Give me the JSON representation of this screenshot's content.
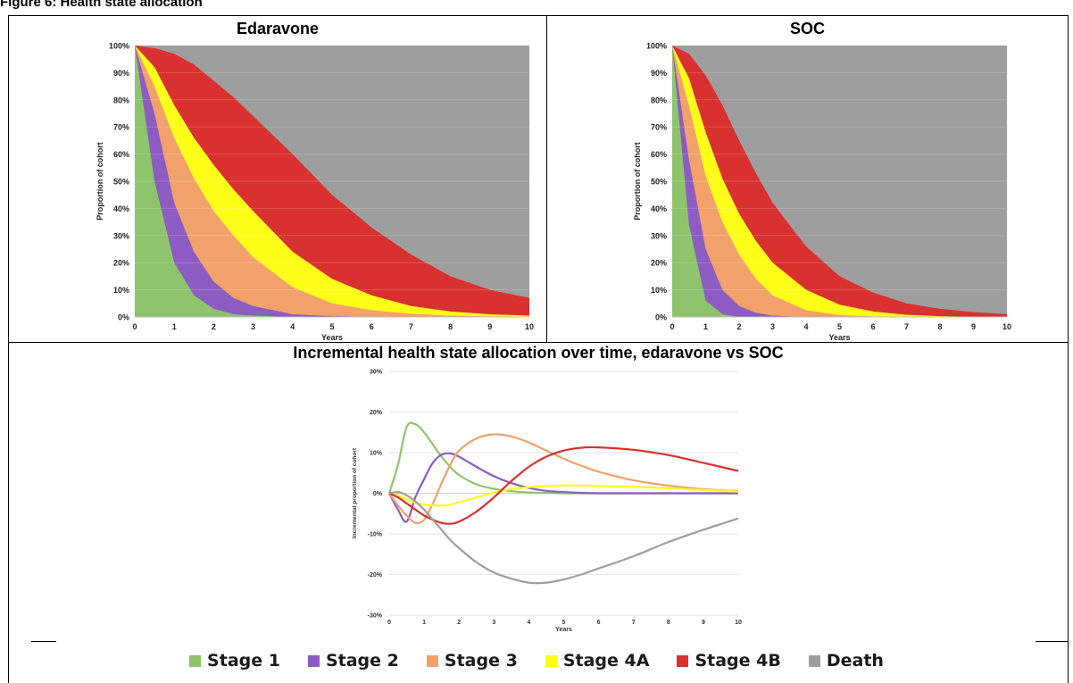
{
  "figure_title": "Figure 6: Health state allocation",
  "colors": {
    "stage1": "#8dc46c",
    "stage2": "#8c5cc2",
    "stage3": "#f2a16a",
    "stage4a": "#ffff1a",
    "stage4b": "#d9312f",
    "death": "#9e9e9e"
  },
  "legend": [
    {
      "label": "Stage 1",
      "color": "#8dc46c"
    },
    {
      "label": "Stage 2",
      "color": "#8c5cc2"
    },
    {
      "label": "Stage 3",
      "color": "#f2a16a"
    },
    {
      "label": "Stage 4A",
      "color": "#ffff1a"
    },
    {
      "label": "Stage 4B",
      "color": "#d9312f"
    },
    {
      "label": "Death",
      "color": "#9e9e9e"
    }
  ],
  "chart_data": [
    {
      "type": "area",
      "title": "Edaravone",
      "xlabel": "Years",
      "ylabel": "Proportion of cohort",
      "xlim": [
        0,
        10
      ],
      "ylim": [
        0,
        100
      ],
      "x_ticks": [
        "0",
        "1",
        "2",
        "3",
        "4",
        "5",
        "6",
        "7",
        "8",
        "9",
        "10"
      ],
      "y_ticks": [
        "0%",
        "10%",
        "20%",
        "30%",
        "40%",
        "50%",
        "60%",
        "70%",
        "80%",
        "90%",
        "100%"
      ],
      "stacked": true,
      "x": [
        0,
        0.5,
        1,
        1.5,
        2,
        2.5,
        3,
        4,
        5,
        6,
        7,
        8,
        9,
        10
      ],
      "cumulative_series": [
        {
          "name": "Stage 1",
          "values": [
            100,
            50,
            20,
            8,
            3,
            1,
            0.5,
            0,
            0,
            0,
            0,
            0,
            0,
            0
          ]
        },
        {
          "name": "Stage 2",
          "values": [
            100,
            75,
            42,
            24,
            13,
            7,
            4,
            1,
            0.3,
            0,
            0,
            0,
            0,
            0
          ]
        },
        {
          "name": "Stage 3",
          "values": [
            100,
            85,
            66,
            51,
            39,
            30,
            22,
            11,
            5,
            2.5,
            1.2,
            0.5,
            0.2,
            0
          ]
        },
        {
          "name": "Stage 4A",
          "values": [
            100,
            92,
            78,
            66,
            56,
            47,
            39,
            24,
            14,
            8,
            4,
            2,
            1,
            0.5
          ]
        },
        {
          "name": "Stage 4B",
          "values": [
            100,
            99,
            97,
            93,
            87,
            81,
            74,
            60,
            45,
            33,
            23,
            15,
            10,
            7
          ]
        },
        {
          "name": "Death",
          "values": [
            100,
            100,
            100,
            100,
            100,
            100,
            100,
            100,
            100,
            100,
            100,
            100,
            100,
            100
          ]
        }
      ],
      "grid": true
    },
    {
      "type": "area",
      "title": "SOC",
      "xlabel": "Years",
      "ylabel": "Proportion of cohort",
      "xlim": [
        0,
        10
      ],
      "ylim": [
        0,
        100
      ],
      "x_ticks": [
        "0",
        "1",
        "2",
        "3",
        "4",
        "5",
        "6",
        "7",
        "8",
        "9",
        "10"
      ],
      "y_ticks": [
        "0%",
        "10%",
        "20%",
        "30%",
        "40%",
        "50%",
        "60%",
        "70%",
        "80%",
        "90%",
        "100%"
      ],
      "stacked": true,
      "x": [
        0,
        0.5,
        1,
        1.5,
        2,
        2.5,
        3,
        4,
        5,
        6,
        7,
        8,
        9,
        10
      ],
      "cumulative_series": [
        {
          "name": "Stage 1",
          "values": [
            100,
            34,
            6,
            1,
            0,
            0,
            0,
            0,
            0,
            0,
            0,
            0,
            0,
            0
          ]
        },
        {
          "name": "Stage 2",
          "values": [
            100,
            58,
            25,
            10,
            4,
            1.5,
            0.5,
            0,
            0,
            0,
            0,
            0,
            0,
            0
          ]
        },
        {
          "name": "Stage 3",
          "values": [
            100,
            78,
            52,
            35,
            23,
            14,
            8,
            2.5,
            0.7,
            0.2,
            0,
            0,
            0,
            0
          ]
        },
        {
          "name": "Stage 4A",
          "values": [
            100,
            88,
            68,
            51,
            38,
            28,
            20,
            10,
            4.5,
            2,
            0.8,
            0.3,
            0.1,
            0
          ]
        },
        {
          "name": "Stage 4B",
          "values": [
            100,
            97,
            89,
            78,
            65,
            53,
            42,
            26,
            15,
            9,
            5,
            3,
            1.8,
            1
          ]
        },
        {
          "name": "Death",
          "values": [
            100,
            100,
            100,
            100,
            100,
            100,
            100,
            100,
            100,
            100,
            100,
            100,
            100,
            100
          ]
        }
      ],
      "grid": true
    },
    {
      "type": "line",
      "title": "Incremental health state allocation over time, edaravone vs SOC",
      "xlabel": "Years",
      "ylabel": "Incremental proportion of cohort",
      "xlim": [
        0,
        10
      ],
      "ylim": [
        -30,
        30
      ],
      "x_ticks": [
        "0",
        "1",
        "2",
        "3",
        "4",
        "5",
        "6",
        "7",
        "8",
        "9",
        "10"
      ],
      "y_ticks": [
        "-30%",
        "-20%",
        "-10%",
        "0%",
        "10%",
        "20%",
        "30%"
      ],
      "x": [
        0,
        0.25,
        0.5,
        0.75,
        1,
        1.25,
        1.5,
        1.75,
        2,
        2.5,
        3,
        3.5,
        4,
        4.5,
        5,
        5.5,
        6,
        7,
        8,
        9,
        10
      ],
      "series": [
        {
          "name": "Stage 1",
          "values": [
            0,
            7,
            16.3,
            17,
            15,
            12,
            9,
            6.5,
            4.5,
            2.2,
            1.1,
            0.5,
            0.2,
            0.1,
            0,
            0,
            0,
            0,
            0,
            0,
            0
          ]
        },
        {
          "name": "Stage 2",
          "values": [
            0,
            -4,
            -7,
            -1,
            3.5,
            7.5,
            9.5,
            9.8,
            9,
            6.5,
            4.2,
            2.5,
            1.3,
            0.6,
            0.3,
            0.1,
            0,
            0,
            0,
            0,
            0
          ]
        },
        {
          "name": "Stage 3",
          "values": [
            0,
            -3,
            -5.5,
            -7.3,
            -6.5,
            -2.5,
            2.5,
            7,
            10.5,
            13.5,
            14.5,
            14,
            12.5,
            10.5,
            8.5,
            6.8,
            5.3,
            3.2,
            1.9,
            1,
            0.5
          ]
        },
        {
          "name": "Stage 4A",
          "values": [
            0,
            -0.5,
            -1.5,
            -2.3,
            -2.8,
            -3,
            -3,
            -2.8,
            -2.2,
            -1,
            0.2,
            1,
            1.5,
            1.8,
            1.9,
            1.9,
            1.8,
            1.6,
            1.2,
            0.8,
            0.4
          ]
        },
        {
          "name": "Stage 4B",
          "values": [
            0,
            -1,
            -2.5,
            -4,
            -5.5,
            -6.5,
            -7.3,
            -7.5,
            -7,
            -4.5,
            -1,
            3,
            6.5,
            9,
            10.5,
            11.2,
            11.3,
            10.7,
            9.4,
            7.5,
            5.5
          ]
        },
        {
          "name": "Death",
          "values": [
            0,
            0.3,
            -0.5,
            -2,
            -4,
            -6.5,
            -9,
            -11.5,
            -13.5,
            -17,
            -19.5,
            -21,
            -22,
            -22,
            -21.2,
            -20,
            -18.5,
            -15.5,
            -12,
            -9,
            -6.2
          ]
        }
      ],
      "grid": true
    }
  ]
}
